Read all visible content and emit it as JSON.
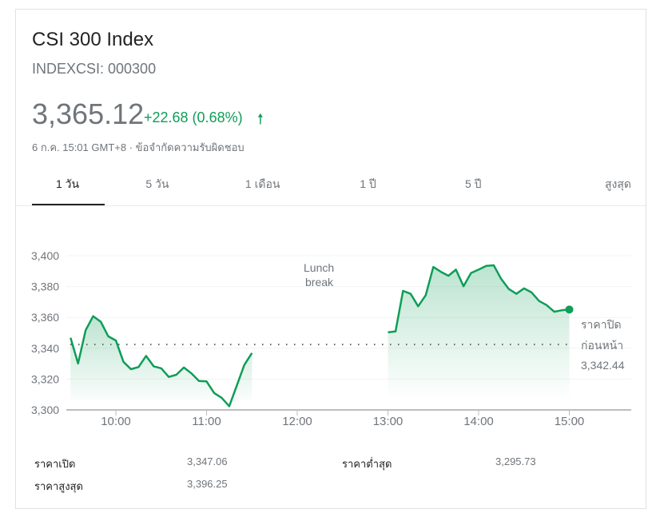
{
  "header": {
    "title": "CSI 300 Index",
    "ticker": "INDEXCSI: 000300",
    "price": "3,365.12",
    "change": "+22.68 (0.68%)",
    "change_icon": "arrow-up-icon",
    "timestamp": "6 ก.ค. 15:01 GMT+8",
    "disclaimer": "ข้อจำกัดความรับผิดชอบ",
    "accent": "#0f9d58"
  },
  "tabs": [
    {
      "label": "1 วัน",
      "active": true
    },
    {
      "label": "5 วัน"
    },
    {
      "label": "1 เดือน"
    },
    {
      "label": "1 ปี"
    },
    {
      "label": "5 ปี"
    },
    {
      "label": "สูงสุด"
    }
  ],
  "chart_data": {
    "type": "line",
    "ylim": [
      3300,
      3400
    ],
    "yticks": [
      "3,400",
      "3,380",
      "3,360",
      "3,340",
      "3,320",
      "3,300"
    ],
    "xticks": [
      "10:00",
      "11:00",
      "12:00",
      "13:00",
      "14:00",
      "15:00"
    ],
    "annotation": "Lunch\nbreak",
    "annotation_lines": [
      "Lunch",
      "break"
    ],
    "previous_close": {
      "label_lines": [
        "ราคาปิด",
        "ก่อนหน้า"
      ],
      "value": 3342.44,
      "value_label": "3,342.44"
    },
    "grid": true,
    "line_color": "#0f9d58",
    "series": [
      {
        "x": [
          "09:30",
          "09:35",
          "09:40",
          "09:45",
          "09:50",
          "09:55",
          "10:00",
          "10:05",
          "10:10",
          "10:15",
          "10:20",
          "10:25",
          "10:30",
          "10:35",
          "10:40",
          "10:45",
          "10:50",
          "10:55",
          "11:00",
          "11:05",
          "11:10",
          "11:15",
          "11:20",
          "11:25",
          "11:30"
        ],
        "values": [
          3346.8,
          3330.1,
          3351.7,
          3360.8,
          3357.2,
          3347.7,
          3345.0,
          3331.2,
          3326.4,
          3327.8,
          3335.0,
          3328.3,
          3327.0,
          3321.4,
          3322.8,
          3327.5,
          3323.7,
          3318.8,
          3318.5,
          3311.0,
          3307.9,
          3302.4,
          3315.7,
          3329.2,
          3336.9
        ]
      },
      {
        "x": [
          "13:00",
          "13:05",
          "13:10",
          "13:15",
          "13:20",
          "13:25",
          "13:30",
          "13:35",
          "13:40",
          "13:45",
          "13:50",
          "13:55",
          "14:00",
          "14:05",
          "14:10",
          "14:15",
          "14:20",
          "14:25",
          "14:30",
          "14:35",
          "14:40",
          "14:45",
          "14:50",
          "14:55",
          "15:00"
        ],
        "values": [
          3350.3,
          3350.9,
          3377.2,
          3375.3,
          3367.2,
          3374.4,
          3392.7,
          3389.6,
          3387.0,
          3391.0,
          3380.2,
          3388.8,
          3391.0,
          3393.4,
          3393.8,
          3384.8,
          3378.4,
          3375.3,
          3378.8,
          3376.2,
          3370.6,
          3368.0,
          3363.7,
          3364.6,
          3365.12
        ]
      }
    ]
  },
  "stats": [
    {
      "label": "ราคาเปิด",
      "value": "3,347.06"
    },
    {
      "label": "ราคาต่ำสุด",
      "value": "3,295.73"
    },
    {
      "label": "ราคาสูงสุด",
      "value": "3,396.25"
    }
  ]
}
